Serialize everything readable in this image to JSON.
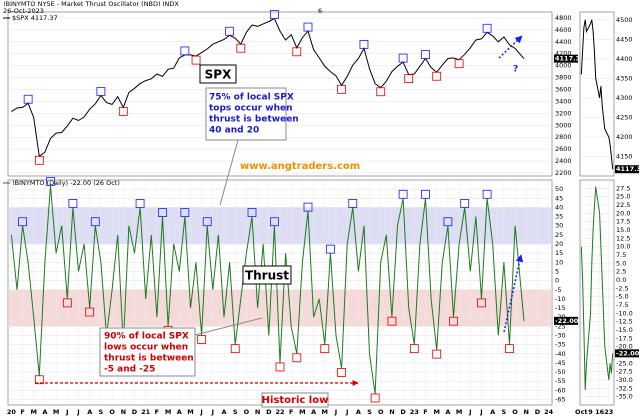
{
  "header": {
    "title": "!BINYMTO NYSE - Market Thrust Oscillator (NBD) INDX",
    "date": "26-Oct-2023",
    "mark": "6"
  },
  "chart_data": [
    {
      "type": "line",
      "legend": "$SPX",
      "color": "#000000",
      "x": [
        0,
        0.5,
        1,
        1.5,
        2,
        2.5,
        3,
        3.5,
        4,
        4.5,
        5,
        5.5,
        6,
        6.5,
        7,
        7.5,
        8,
        8.5,
        9,
        9.5,
        10,
        10.5,
        11,
        11.5,
        12,
        12.5,
        13,
        13.5,
        14,
        14.5,
        15,
        15.5,
        16,
        16.5,
        17,
        17.5,
        18,
        18.5,
        19,
        19.5,
        20,
        20.5,
        21,
        21.5,
        22,
        22.5,
        23,
        23.5,
        24,
        24.5,
        25,
        25.5,
        26,
        26.5,
        27,
        27.5,
        28,
        28.5,
        29,
        29.5,
        30,
        30.5,
        31,
        31.5,
        32,
        32.5,
        33,
        33.5,
        34,
        34.5,
        35,
        35.5,
        36,
        36.5,
        37,
        37.5,
        38,
        38.5,
        39,
        39.5,
        40,
        40.5,
        41,
        41.5,
        42,
        42.5,
        43,
        43.5,
        44,
        44.5,
        45,
        45.8
      ],
      "values": [
        3230,
        3290,
        3300,
        3370,
        3130,
        2480,
        2550,
        2780,
        2870,
        2880,
        2990,
        3120,
        3080,
        3140,
        3270,
        3360,
        3500,
        3380,
        3350,
        3480,
        3300,
        3550,
        3620,
        3700,
        3750,
        3780,
        3860,
        3820,
        3940,
        3960,
        4130,
        4180,
        4180,
        4160,
        4220,
        4280,
        4360,
        4400,
        4440,
        4510,
        4460,
        4360,
        4560,
        4680,
        4660,
        4700,
        4740,
        4790,
        4580,
        4430,
        4520,
        4300,
        4470,
        4580,
        4270,
        4130,
        3990,
        3900,
        3830,
        3670,
        3820,
        4010,
        4120,
        4290,
        3950,
        3700,
        3630,
        3740,
        3900,
        3990,
        4060,
        3850,
        3860,
        3990,
        4120,
        3970,
        3890,
        4010,
        4120,
        4130,
        4100,
        4190,
        4300,
        4430,
        4450,
        4560,
        4500,
        4400,
        4480,
        4350,
        4290,
        4117.37
      ],
      "xlim": [
        -0.3,
        48.3
      ],
      "ylim": [
        2150,
        4900
      ],
      "yticks": [
        2200,
        2400,
        2600,
        2800,
        3000,
        3200,
        3400,
        3600,
        3800,
        4000,
        4200,
        4400,
        4600,
        4800
      ],
      "grid": true,
      "markers": true,
      "annotations": {
        "label": "SPX",
        "question": "?"
      }
    },
    {
      "type": "line",
      "legend": "!BINYMTO (Daily)",
      "last_label": "-22.00",
      "legend_date": "(26 Oct)",
      "color": "#1f7a1f",
      "x": [
        0,
        0.5,
        1,
        1.5,
        2,
        2.5,
        3,
        3.5,
        4,
        4.5,
        5,
        5.5,
        6,
        6.5,
        7,
        7.5,
        8,
        8.5,
        9,
        9.5,
        10,
        10.5,
        11,
        11.5,
        12,
        12.5,
        13,
        13.5,
        14,
        14.5,
        15,
        15.5,
        16,
        16.5,
        17,
        17.5,
        18,
        18.5,
        19,
        19.5,
        20,
        20.5,
        21,
        21.5,
        22,
        22.5,
        23,
        23.5,
        24,
        24.5,
        25,
        25.5,
        26,
        26.5,
        27,
        27.5,
        28,
        28.5,
        29,
        29.5,
        30,
        30.5,
        31,
        31.5,
        32,
        32.5,
        33,
        33.5,
        34,
        34.5,
        35,
        35.5,
        36,
        36.5,
        37,
        37.5,
        38,
        38.5,
        39,
        39.5,
        40,
        40.5,
        41,
        41.5,
        42,
        42.5,
        43,
        43.5,
        44,
        44.5,
        45,
        45.8
      ],
      "values": [
        25,
        -5,
        30,
        10,
        -20,
        -52,
        10,
        52,
        15,
        30,
        -10,
        40,
        5,
        20,
        -15,
        30,
        10,
        -30,
        -5,
        25,
        -35,
        30,
        15,
        40,
        -10,
        25,
        -20,
        35,
        -25,
        20,
        5,
        35,
        -15,
        10,
        -30,
        30,
        -5,
        25,
        -20,
        10,
        -35,
        -10,
        15,
        35,
        -15,
        20,
        -30,
        30,
        -45,
        15,
        -25,
        -40,
        10,
        38,
        -20,
        -10,
        -35,
        15,
        -30,
        -48,
        20,
        40,
        5,
        30,
        -40,
        -62,
        10,
        25,
        -20,
        30,
        45,
        -15,
        -35,
        20,
        45,
        -10,
        -38,
        10,
        30,
        -20,
        20,
        40,
        5,
        35,
        -10,
        45,
        20,
        -30,
        10,
        -35,
        30,
        -22
      ],
      "xlim": [
        -0.3,
        48.3
      ],
      "ylim": [
        -68,
        55
      ],
      "yticks": [
        -65,
        -60,
        -55,
        -50,
        -45,
        -40,
        -35,
        -30,
        -25,
        -20,
        -15,
        -10,
        -5,
        0,
        5,
        10,
        15,
        20,
        25,
        30,
        35,
        40,
        45,
        50
      ],
      "xticks": [
        {
          "value": 0,
          "label": "20"
        },
        {
          "value": 1,
          "label": "F"
        },
        {
          "value": 2,
          "label": "M"
        },
        {
          "value": 3,
          "label": "A"
        },
        {
          "value": 4,
          "label": "M"
        },
        {
          "value": 5,
          "label": "J"
        },
        {
          "value": 6,
          "label": "J"
        },
        {
          "value": 7,
          "label": "A"
        },
        {
          "value": 8,
          "label": "S"
        },
        {
          "value": 9,
          "label": "O"
        },
        {
          "value": 10,
          "label": "N"
        },
        {
          "value": 11,
          "label": "D"
        },
        {
          "value": 12,
          "label": "21"
        },
        {
          "value": 13,
          "label": "F"
        },
        {
          "value": 14,
          "label": "M"
        },
        {
          "value": 15,
          "label": "A"
        },
        {
          "value": 16,
          "label": "M"
        },
        {
          "value": 17,
          "label": "J"
        },
        {
          "value": 18,
          "label": "J"
        },
        {
          "value": 19,
          "label": "A"
        },
        {
          "value": 20,
          "label": "S"
        },
        {
          "value": 21,
          "label": "O"
        },
        {
          "value": 22,
          "label": "N"
        },
        {
          "value": 23,
          "label": "D"
        },
        {
          "value": 24,
          "label": "22"
        },
        {
          "value": 25,
          "label": "F"
        },
        {
          "value": 26,
          "label": "M"
        },
        {
          "value": 27,
          "label": "A"
        },
        {
          "value": 28,
          "label": "M"
        },
        {
          "value": 29,
          "label": "J"
        },
        {
          "value": 30,
          "label": "J"
        },
        {
          "value": 31,
          "label": "A"
        },
        {
          "value": 32,
          "label": "S"
        },
        {
          "value": 33,
          "label": "O"
        },
        {
          "value": 34,
          "label": "N"
        },
        {
          "value": 35,
          "label": "D"
        },
        {
          "value": 36,
          "label": "23"
        },
        {
          "value": 37,
          "label": "F"
        },
        {
          "value": 38,
          "label": "M"
        },
        {
          "value": 39,
          "label": "A"
        },
        {
          "value": 40,
          "label": "M"
        },
        {
          "value": 41,
          "label": "J"
        },
        {
          "value": 42,
          "label": "J"
        },
        {
          "value": 43,
          "label": "A"
        },
        {
          "value": 44,
          "label": "S"
        },
        {
          "value": 45,
          "label": "O"
        },
        {
          "value": 46,
          "label": "N"
        },
        {
          "value": 47,
          "label": "D"
        },
        {
          "value": 48,
          "label": "24"
        }
      ],
      "bands": [
        {
          "from": 20,
          "to": 40,
          "color": "#d4d4f4"
        },
        {
          "from": -25,
          "to": -5,
          "color": "#f4d0d0"
        }
      ],
      "grid": true,
      "markers": true,
      "annotations": {
        "label": "Thrust",
        "website": "www.angtraders.com",
        "tops_note": [
          "75% of local SPX",
          "tops occur when",
          "thrust is between",
          "40 and 20"
        ],
        "lows_note": [
          "90% of local SPX",
          "lows occur when",
          "thrust is between",
          "-5 and -25"
        ],
        "historic_low": "Historic low"
      }
    },
    {
      "type": "line",
      "color": "#000000",
      "x": [
        2,
        3,
        4,
        5,
        6,
        9,
        10,
        11,
        12,
        13,
        16,
        17,
        18,
        19,
        20,
        23,
        24,
        25,
        26
      ],
      "values": [
        4360,
        4420,
        4480,
        4500,
        4470,
        4490,
        4500,
        4470,
        4420,
        4350,
        4300,
        4330,
        4280,
        4250,
        4220,
        4200,
        4180,
        4150,
        4117.37
      ],
      "xlim": [
        1,
        27
      ],
      "ylim": [
        4100,
        4520
      ],
      "yticks": [
        4150,
        4200,
        4250,
        4300,
        4350,
        4400,
        4450,
        4500
      ],
      "grid": true
    },
    {
      "type": "line",
      "color": "#1f7a1f",
      "last_label": "-22.00",
      "x": [
        2,
        3,
        4,
        5,
        6,
        9,
        10,
        11,
        12,
        13,
        16,
        17,
        18,
        19,
        20,
        23,
        24,
        25,
        26
      ],
      "values": [
        10,
        0,
        -15,
        -33,
        -25,
        -10,
        5,
        15,
        22,
        28,
        20,
        10,
        0,
        -10,
        -20,
        -30,
        -25,
        -28,
        -22
      ],
      "xlim": [
        1,
        27
      ],
      "ylim": [
        -37.5,
        30
      ],
      "yticks": [
        {
          "value": -35,
          "label": "-35.0"
        },
        -32.5,
        {
          "value": -30,
          "label": "-30.0"
        },
        -27.5,
        {
          "value": -25,
          "label": "-25.0"
        },
        -22.5,
        {
          "value": -20,
          "label": "-20.0"
        },
        -17.5,
        {
          "value": -15,
          "label": "-15.0"
        },
        -12.5,
        {
          "value": -10,
          "label": "-10.0"
        },
        -7.5,
        {
          "value": -5,
          "label": "-5.0"
        },
        -2.5,
        {
          "value": 0,
          "label": "0.0"
        },
        2.5,
        {
          "value": 5,
          "label": "5.0"
        },
        7.5,
        {
          "value": 10,
          "label": "10.0"
        },
        12.5,
        {
          "value": 15,
          "label": "15.0"
        },
        17.5,
        {
          "value": 20,
          "label": "20.0"
        },
        22.5,
        {
          "value": 25,
          "label": "25.0"
        },
        27.5
      ],
      "xticks": [
        {
          "value": 2,
          "label": "Oct"
        },
        9,
        16,
        23
      ],
      "grid": true
    }
  ]
}
